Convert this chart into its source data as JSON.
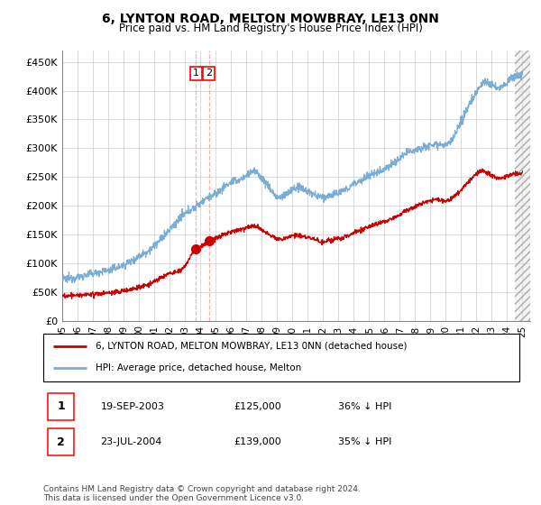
{
  "title": "6, LYNTON ROAD, MELTON MOWBRAY, LE13 0NN",
  "subtitle": "Price paid vs. HM Land Registry's House Price Index (HPI)",
  "ylabel_ticks": [
    "£0",
    "£50K",
    "£100K",
    "£150K",
    "£200K",
    "£250K",
    "£300K",
    "£350K",
    "£400K",
    "£450K"
  ],
  "ytick_values": [
    0,
    50000,
    100000,
    150000,
    200000,
    250000,
    300000,
    350000,
    400000,
    450000
  ],
  "ylim": [
    0,
    470000
  ],
  "xlim_start": 1995.0,
  "xlim_end": 2025.5,
  "hpi_color": "#7aadd4",
  "price_color": "#cc0000",
  "sale1_date": 2003.72,
  "sale1_price": 125000,
  "sale2_date": 2004.56,
  "sale2_price": 139000,
  "grid_color": "#cccccc",
  "legend_house": "6, LYNTON ROAD, MELTON MOWBRAY, LE13 0NN (detached house)",
  "legend_hpi": "HPI: Average price, detached house, Melton",
  "footnote": "Contains HM Land Registry data © Crown copyright and database right 2024.\nThis data is licensed under the Open Government Licence v3.0.",
  "xtick_years": [
    1995,
    1996,
    1997,
    1998,
    1999,
    2000,
    2001,
    2002,
    2003,
    2004,
    2005,
    2006,
    2007,
    2008,
    2009,
    2010,
    2011,
    2012,
    2013,
    2014,
    2015,
    2016,
    2017,
    2018,
    2019,
    2020,
    2021,
    2022,
    2023,
    2024,
    2025
  ],
  "bg_color": "#ffffff"
}
